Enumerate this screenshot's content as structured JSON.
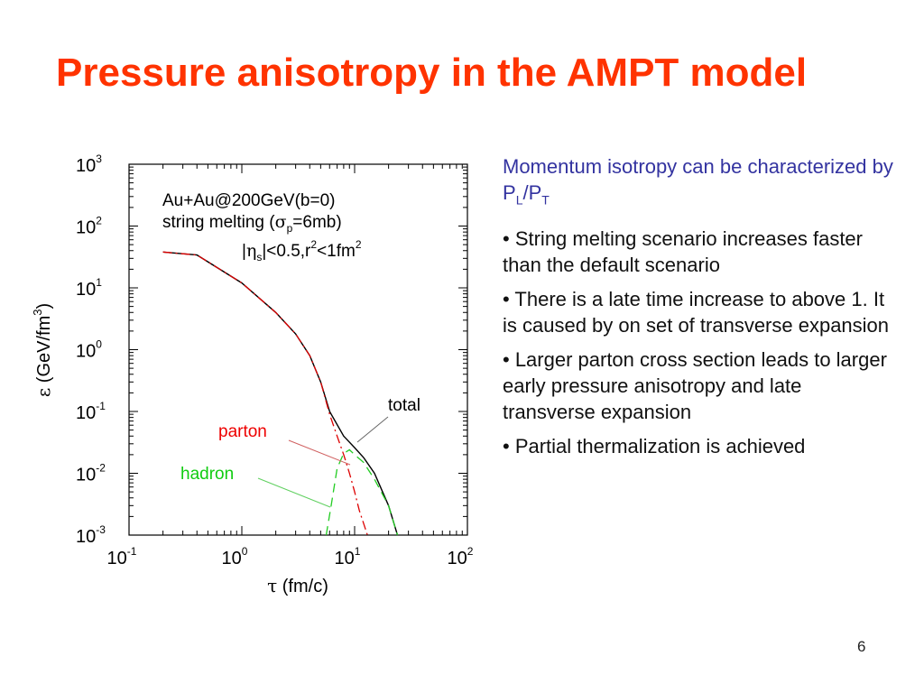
{
  "slide": {
    "title": "Pressure anisotropy in the AMPT model",
    "page_number": "6"
  },
  "description": {
    "intro_prefix": "Momentum isotropy can be characterized by P",
    "intro_sub1": "L",
    "intro_mid": "/P",
    "intro_sub2": "T",
    "bullets": [
      "• String melting scenario increases faster than the default scenario",
      "• There is a late time increase to above 1. It is caused by on set of transverse expansion",
      "• Larger parton cross section leads to larger early pressure anisotropy and late transverse expansion",
      "• Partial thermalization is achieved"
    ]
  },
  "colors": {
    "title": "#ff3300",
    "intro_text": "#3333a0",
    "total": "#000000",
    "parton": "#dd0000",
    "hadron": "#22cc22"
  },
  "chart_data": {
    "type": "line",
    "xscale": "log",
    "yscale": "log",
    "xlim": [
      0.1,
      100
    ],
    "ylim": [
      0.001,
      1000
    ],
    "xlabel": "τ (fm/c)",
    "ylabel": "ε (GeV/fm3)",
    "x_ticks": [
      {
        "value": 0.1,
        "label": "10",
        "exp": "-1"
      },
      {
        "value": 1,
        "label": "10",
        "exp": "0"
      },
      {
        "value": 10,
        "label": "10",
        "exp": "1"
      },
      {
        "value": 100,
        "label": "10",
        "exp": "2"
      }
    ],
    "y_ticks": [
      {
        "value": 0.001,
        "label": "10",
        "exp": "-3"
      },
      {
        "value": 0.01,
        "label": "10",
        "exp": "-2"
      },
      {
        "value": 0.1,
        "label": "10",
        "exp": "-1"
      },
      {
        "value": 1,
        "label": "10",
        "exp": "0"
      },
      {
        "value": 10,
        "label": "10",
        "exp": "1"
      },
      {
        "value": 100,
        "label": "10",
        "exp": "2"
      },
      {
        "value": 1000,
        "label": "10",
        "exp": "3"
      }
    ],
    "annotation": {
      "line1": "Au+Au@200GeV(b=0)",
      "line2_prefix": "string melting (",
      "line2_sigma": "σ",
      "line2_sub": "p",
      "line2_suffix": "=6mb)",
      "line3_prefix": "|",
      "line3_eta": "η",
      "line3_sub": "s",
      "line3_mid": "|<0.5,r",
      "line3_sup1": "2",
      "line3_mid2": "<1fm",
      "line3_sup2": "2"
    },
    "series": [
      {
        "name": "total",
        "style": "solid",
        "points": [
          [
            0.2,
            38
          ],
          [
            0.4,
            34
          ],
          [
            1.0,
            12
          ],
          [
            2.0,
            4
          ],
          [
            3.0,
            1.8
          ],
          [
            4.0,
            0.8
          ],
          [
            5.0,
            0.3
          ],
          [
            6.0,
            0.1
          ],
          [
            8.0,
            0.04
          ],
          [
            10.0,
            0.026
          ],
          [
            12.0,
            0.018
          ],
          [
            15.0,
            0.01
          ],
          [
            20.0,
            0.003
          ],
          [
            24.0,
            0.001
          ]
        ]
      },
      {
        "name": "parton",
        "style": "dashdot",
        "points": [
          [
            0.2,
            38
          ],
          [
            0.4,
            34
          ],
          [
            1.0,
            12
          ],
          [
            2.0,
            4
          ],
          [
            3.0,
            1.8
          ],
          [
            4.0,
            0.8
          ],
          [
            5.0,
            0.3
          ],
          [
            6.0,
            0.09
          ],
          [
            7.0,
            0.04
          ],
          [
            8.0,
            0.02
          ],
          [
            9.0,
            0.01
          ],
          [
            10.0,
            0.005
          ],
          [
            11.0,
            0.0025
          ],
          [
            13.0,
            0.001
          ]
        ]
      },
      {
        "name": "hadron",
        "style": "dashed",
        "points": [
          [
            5.6,
            0.001
          ],
          [
            6.2,
            0.003
          ],
          [
            7.0,
            0.012
          ],
          [
            8.0,
            0.021
          ],
          [
            9.0,
            0.024
          ],
          [
            10.0,
            0.02
          ],
          [
            12.0,
            0.015
          ],
          [
            15.0,
            0.008
          ],
          [
            20.0,
            0.003
          ],
          [
            24.0,
            0.001
          ]
        ]
      }
    ],
    "curve_labels": [
      {
        "series": "total",
        "text": "total"
      },
      {
        "series": "parton",
        "text": "parton"
      },
      {
        "series": "hadron",
        "text": "hadron"
      }
    ]
  }
}
